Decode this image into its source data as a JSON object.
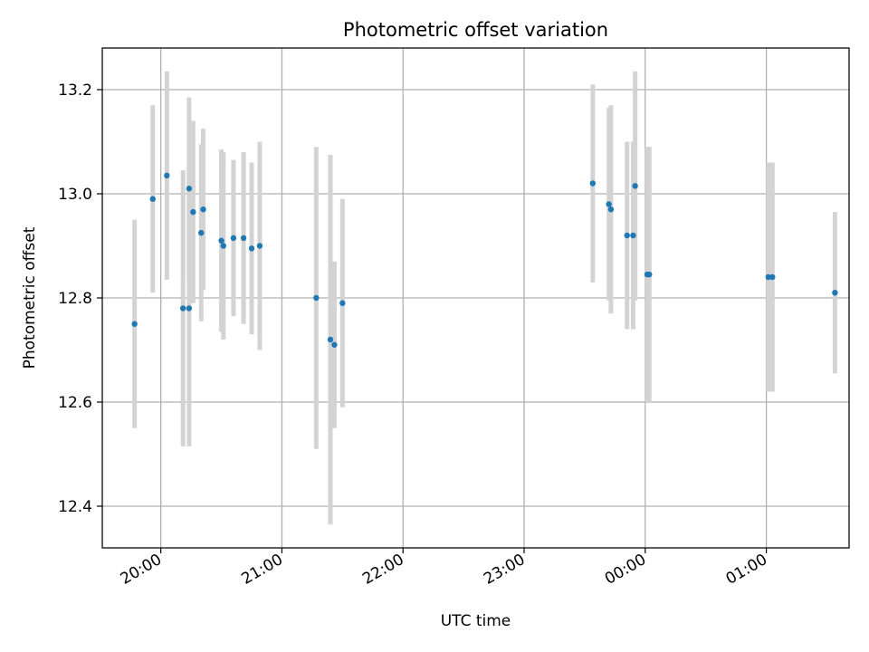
{
  "chart_data": {
    "type": "scatter",
    "title": "Photometric offset variation",
    "xlabel": "UTC time",
    "ylabel": "Photometric offset",
    "xlim": [
      "19:31",
      "01:41"
    ],
    "ylim": [
      12.32,
      13.28
    ],
    "x_ticks": [
      "20:00",
      "21:00",
      "22:00",
      "23:00",
      "00:00",
      "01:00"
    ],
    "y_ticks": [
      12.4,
      12.6,
      12.8,
      13.0,
      13.2
    ],
    "grid": true,
    "colors": {
      "points": "#1f77b4",
      "error_bars": "#d3d3d3",
      "grid": "#b0b0b0",
      "axes": "#000000"
    },
    "points": [
      {
        "x": "19:47",
        "y": 12.75,
        "err": 0.2
      },
      {
        "x": "19:56",
        "y": 12.99,
        "err": 0.18
      },
      {
        "x": "20:03",
        "y": 13.035,
        "err": 0.2
      },
      {
        "x": "20:11",
        "y": 12.78,
        "err": 0.265
      },
      {
        "x": "20:14",
        "y": 12.78,
        "err": 0.265
      },
      {
        "x": "20:14",
        "y": 13.01,
        "err": 0.175
      },
      {
        "x": "20:16",
        "y": 12.965,
        "err": 0.175
      },
      {
        "x": "20:20",
        "y": 12.925,
        "err": 0.17
      },
      {
        "x": "20:21",
        "y": 12.97,
        "err": 0.155
      },
      {
        "x": "20:30",
        "y": 12.91,
        "err": 0.175
      },
      {
        "x": "20:31",
        "y": 12.9,
        "err": 0.18
      },
      {
        "x": "20:36",
        "y": 12.915,
        "err": 0.15
      },
      {
        "x": "20:41",
        "y": 12.915,
        "err": 0.165
      },
      {
        "x": "20:45",
        "y": 12.895,
        "err": 0.165
      },
      {
        "x": "20:49",
        "y": 12.9,
        "err": 0.2
      },
      {
        "x": "21:17",
        "y": 12.8,
        "err": 0.29
      },
      {
        "x": "21:24",
        "y": 12.72,
        "err": 0.355
      },
      {
        "x": "21:26",
        "y": 12.71,
        "err": 0.16
      },
      {
        "x": "21:30",
        "y": 12.79,
        "err": 0.2
      },
      {
        "x": "23:34",
        "y": 13.02,
        "err": 0.19
      },
      {
        "x": "23:42",
        "y": 12.98,
        "err": 0.185
      },
      {
        "x": "23:43",
        "y": 12.97,
        "err": 0.2
      },
      {
        "x": "23:51",
        "y": 12.92,
        "err": 0.18
      },
      {
        "x": "23:54",
        "y": 12.92,
        "err": 0.18
      },
      {
        "x": "23:55",
        "y": 13.015,
        "err": 0.22
      },
      {
        "x": "00:01",
        "y": 12.845,
        "err": 0.245
      },
      {
        "x": "00:02",
        "y": 12.845,
        "err": 0.245
      },
      {
        "x": "01:01",
        "y": 12.84,
        "err": 0.22
      },
      {
        "x": "01:03",
        "y": 12.84,
        "err": 0.22
      },
      {
        "x": "01:34",
        "y": 12.81,
        "err": 0.155
      }
    ]
  }
}
